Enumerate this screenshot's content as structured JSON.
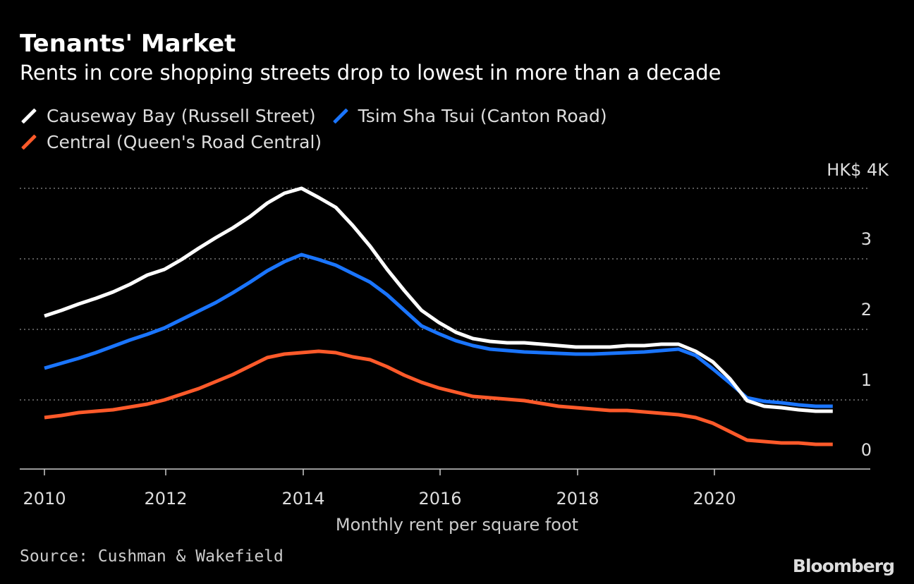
{
  "chart_data": {
    "type": "line",
    "title": "Tenants' Market",
    "subtitle": "Rents in core shopping streets drop to lowest in more than a decade",
    "xlabel": "Monthly rent per square foot",
    "ylabel": "",
    "y_unit_label": "HK$ 4K",
    "ylim": [
      0,
      4
    ],
    "yticks": [
      "0",
      "1",
      "2",
      "3"
    ],
    "xticks": [
      "2010",
      "2012",
      "2014",
      "2016",
      "2018",
      "2020"
    ],
    "grid": true,
    "legend_placement": "top-left",
    "source": "Source: Cushman & Wakefield",
    "logo": "Bloomberg",
    "x_start": 2010.0,
    "x_step_years": 0.25,
    "series": [
      {
        "name": "Causeway Bay (Russell Street)",
        "color": "#ffffff",
        "values": [
          2.19,
          2.27,
          2.36,
          2.44,
          2.53,
          2.64,
          2.77,
          2.85,
          2.99,
          3.15,
          3.3,
          3.44,
          3.6,
          3.79,
          3.93,
          4.0,
          3.87,
          3.73,
          3.47,
          3.18,
          2.85,
          2.55,
          2.27,
          2.1,
          1.96,
          1.87,
          1.83,
          1.81,
          1.81,
          1.79,
          1.77,
          1.75,
          1.75,
          1.75,
          1.77,
          1.77,
          1.79,
          1.79,
          1.69,
          1.54,
          1.3,
          0.99,
          0.91,
          0.89,
          0.86,
          0.84,
          0.84
        ]
      },
      {
        "name": "Tsim Sha Tsui (Canton Road)",
        "color": "#1a75ff",
        "values": [
          1.45,
          1.52,
          1.59,
          1.67,
          1.76,
          1.85,
          1.93,
          2.02,
          2.14,
          2.26,
          2.38,
          2.52,
          2.67,
          2.83,
          2.96,
          3.06,
          2.99,
          2.91,
          2.79,
          2.67,
          2.49,
          2.27,
          2.05,
          1.94,
          1.84,
          1.77,
          1.72,
          1.7,
          1.68,
          1.67,
          1.66,
          1.65,
          1.65,
          1.66,
          1.67,
          1.68,
          1.7,
          1.72,
          1.63,
          1.44,
          1.24,
          1.03,
          0.98,
          0.96,
          0.93,
          0.91,
          0.91
        ]
      },
      {
        "name": "Central (Queen's Road Central)",
        "color": "#ff5a2a",
        "values": [
          0.75,
          0.78,
          0.82,
          0.84,
          0.86,
          0.9,
          0.94,
          1.0,
          1.08,
          1.16,
          1.26,
          1.36,
          1.48,
          1.6,
          1.65,
          1.67,
          1.69,
          1.67,
          1.61,
          1.57,
          1.47,
          1.35,
          1.25,
          1.17,
          1.11,
          1.05,
          1.03,
          1.01,
          0.99,
          0.95,
          0.91,
          0.89,
          0.87,
          0.85,
          0.85,
          0.83,
          0.81,
          0.79,
          0.75,
          0.67,
          0.55,
          0.43,
          0.41,
          0.39,
          0.39,
          0.37,
          0.37
        ]
      }
    ]
  }
}
